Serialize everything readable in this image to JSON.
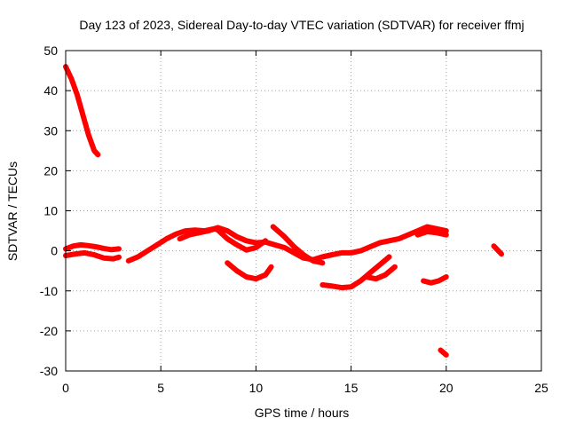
{
  "chart_data": {
    "type": "scatter",
    "title": "Day 123 of 2023, Sidereal Day-to-day VTEC variation (SDTVAR) for receiver ffmj",
    "xlabel": "GPS time / hours",
    "ylabel": "SDTVAR / TECUs",
    "xlim": [
      0,
      25
    ],
    "ylim": [
      -30,
      50
    ],
    "xticks": [
      0,
      5,
      10,
      15,
      20,
      25
    ],
    "yticks": [
      -30,
      -20,
      -10,
      0,
      10,
      20,
      30,
      40,
      50
    ],
    "grid": true,
    "series_color": "#ff0000",
    "series": [
      {
        "name": "seg-early-decline",
        "x": [
          0.0,
          0.3,
          0.6,
          0.9,
          1.2,
          1.5,
          1.7
        ],
        "y": [
          46,
          43,
          39,
          34,
          29,
          25,
          24
        ]
      },
      {
        "name": "seg-morning-upper",
        "x": [
          0.0,
          0.4,
          0.8,
          1.2,
          1.6,
          2.0,
          2.4,
          2.8
        ],
        "y": [
          0.5,
          1.2,
          1.5,
          1.3,
          1.0,
          0.6,
          0.3,
          0.5
        ]
      },
      {
        "name": "seg-morning-lower",
        "x": [
          0.0,
          0.5,
          1.0,
          1.5,
          2.0,
          2.5,
          2.8
        ],
        "y": [
          -1.2,
          -0.8,
          -0.5,
          -1.0,
          -1.8,
          -2.0,
          -1.6
        ]
      },
      {
        "name": "seg-rise",
        "x": [
          3.3,
          3.8,
          4.3,
          4.8,
          5.3,
          5.8,
          6.3,
          6.8,
          7.3,
          7.8,
          8.3
        ],
        "y": [
          -2.5,
          -1.5,
          0.0,
          1.5,
          3.0,
          4.2,
          5.0,
          5.2,
          5.0,
          5.5,
          5.0
        ]
      },
      {
        "name": "seg-midday",
        "x": [
          6.0,
          6.5,
          7.0,
          7.5,
          8.0,
          8.5,
          9.0,
          9.5,
          10.0,
          10.5,
          11.0,
          11.5,
          12.0,
          12.5,
          13.0,
          13.5,
          14.0
        ],
        "y": [
          3.0,
          4.0,
          4.5,
          5.0,
          5.8,
          5.0,
          3.5,
          2.5,
          2.0,
          2.2,
          1.5,
          0.8,
          -0.5,
          -1.8,
          -2.2,
          -1.5,
          -1.0
        ]
      },
      {
        "name": "seg-upper-wave",
        "x": [
          8.0,
          8.5,
          9.0,
          9.5,
          10.0,
          10.5
        ],
        "y": [
          5.2,
          3.0,
          1.5,
          0.2,
          0.8,
          2.5
        ]
      },
      {
        "name": "seg-dip-10h",
        "x": [
          8.5,
          9.0,
          9.5,
          10.0,
          10.5,
          10.8
        ],
        "y": [
          -3.0,
          -5.0,
          -6.5,
          -7.0,
          -6.0,
          -4.0
        ]
      },
      {
        "name": "seg-loop-11h",
        "x": [
          10.9,
          11.5,
          12.0,
          12.5,
          13.0,
          13.5
        ],
        "y": [
          6.0,
          3.5,
          1.0,
          -1.0,
          -2.5,
          -3.0
        ]
      },
      {
        "name": "seg-evening-rise",
        "x": [
          13.5,
          14.0,
          14.5,
          15.0,
          15.5,
          16.0,
          16.5,
          17.0,
          17.5,
          18.0,
          18.5,
          19.0,
          19.5,
          20.0
        ],
        "y": [
          -1.5,
          -1.0,
          -0.5,
          -0.5,
          0.0,
          1.0,
          2.0,
          2.5,
          3.0,
          4.0,
          5.0,
          6.0,
          5.5,
          5.0
        ]
      },
      {
        "name": "seg-late-band",
        "x": [
          18.5,
          19.0,
          19.5,
          20.0
        ],
        "y": [
          4.0,
          4.8,
          4.5,
          4.0
        ]
      },
      {
        "name": "seg-dip-15h",
        "x": [
          13.5,
          14.0,
          14.5,
          15.0,
          15.5,
          16.0,
          16.5,
          17.0
        ],
        "y": [
          -8.5,
          -8.8,
          -9.2,
          -9.0,
          -7.5,
          -5.5,
          -3.5,
          -1.5
        ]
      },
      {
        "name": "seg-small-dip",
        "x": [
          15.8,
          16.3,
          16.8,
          17.3
        ],
        "y": [
          -6.5,
          -7.0,
          -6.0,
          -4.0
        ]
      },
      {
        "name": "seg-late-neg",
        "x": [
          18.8,
          19.2,
          19.6,
          20.0
        ],
        "y": [
          -7.5,
          -8.0,
          -7.5,
          -6.5
        ]
      },
      {
        "name": "seg-late-outlier",
        "x": [
          19.7,
          20.0
        ],
        "y": [
          -24.8,
          -26.0
        ]
      },
      {
        "name": "seg-22h",
        "x": [
          22.5,
          22.7,
          22.9
        ],
        "y": [
          1.2,
          0.2,
          -0.8
        ]
      }
    ]
  }
}
